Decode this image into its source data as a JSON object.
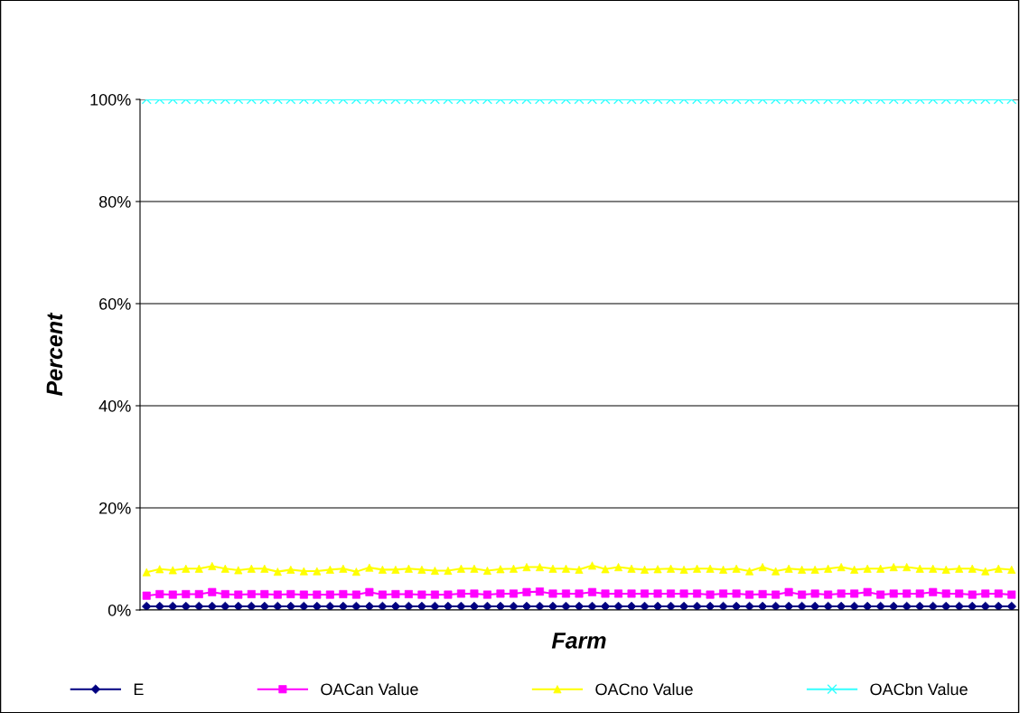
{
  "chart_data": {
    "type": "line",
    "xlabel": "Farm",
    "ylabel": "Percent",
    "categories": [
      null,
      null,
      null,
      null,
      null,
      null,
      null,
      null,
      null,
      null,
      null,
      null,
      null,
      null,
      null,
      null,
      null,
      null,
      null,
      null,
      null,
      null,
      null,
      null,
      null,
      null,
      null,
      null,
      null,
      null,
      null,
      null,
      null,
      null,
      null,
      null,
      null,
      null,
      null,
      null,
      null,
      null,
      null,
      null,
      null,
      null,
      null,
      null,
      null,
      null,
      null,
      null,
      null,
      null,
      null,
      null,
      null,
      null,
      null,
      null,
      null,
      null,
      null,
      null,
      null,
      null,
      null
    ],
    "ylim": [
      0,
      100
    ],
    "yticks": [
      {
        "value": 0,
        "label": "0%"
      },
      {
        "value": 20,
        "label": "20%"
      },
      {
        "value": 40,
        "label": "40%"
      },
      {
        "value": 60,
        "label": "60%"
      },
      {
        "value": 80,
        "label": "80%"
      },
      {
        "value": 100,
        "label": "100%"
      }
    ],
    "grid": "y",
    "legend": "bottom",
    "series": [
      {
        "name": "E",
        "color": "#000080",
        "marker": "diamond",
        "values": [
          0.7,
          0.7,
          0.7,
          0.7,
          0.7,
          0.7,
          0.7,
          0.7,
          0.7,
          0.7,
          0.7,
          0.7,
          0.7,
          0.7,
          0.7,
          0.7,
          0.7,
          0.7,
          0.7,
          0.7,
          0.7,
          0.7,
          0.7,
          0.7,
          0.7,
          0.7,
          0.7,
          0.7,
          0.7,
          0.7,
          0.7,
          0.7,
          0.7,
          0.7,
          0.7,
          0.7,
          0.7,
          0.7,
          0.7,
          0.7,
          0.7,
          0.7,
          0.7,
          0.7,
          0.7,
          0.7,
          0.7,
          0.7,
          0.7,
          0.7,
          0.7,
          0.7,
          0.7,
          0.7,
          0.7,
          0.7,
          0.7,
          0.7,
          0.7,
          0.7,
          0.7,
          0.7,
          0.7,
          0.7,
          0.7,
          0.7,
          0.7
        ]
      },
      {
        "name": "OACan Value",
        "color": "#ff00ff",
        "marker": "square",
        "values": [
          2.8,
          3.1,
          3.0,
          3.1,
          3.1,
          3.5,
          3.1,
          3.0,
          3.1,
          3.1,
          3.0,
          3.1,
          3.0,
          3.0,
          3.0,
          3.1,
          3.0,
          3.5,
          3.0,
          3.1,
          3.1,
          3.0,
          3.0,
          3.0,
          3.2,
          3.2,
          3.0,
          3.2,
          3.2,
          3.5,
          3.6,
          3.2,
          3.2,
          3.2,
          3.5,
          3.2,
          3.2,
          3.2,
          3.2,
          3.2,
          3.2,
          3.2,
          3.2,
          3.0,
          3.2,
          3.2,
          3.0,
          3.1,
          3.0,
          3.5,
          3.0,
          3.2,
          3.0,
          3.2,
          3.2,
          3.5,
          3.0,
          3.2,
          3.2,
          3.2,
          3.5,
          3.2,
          3.2,
          3.0,
          3.2,
          3.2,
          3.0
        ]
      },
      {
        "name": "OACno Value",
        "color": "#ffff00",
        "marker": "triangle",
        "values": [
          7.4,
          8.0,
          7.8,
          8.1,
          8.1,
          8.6,
          8.1,
          7.8,
          8.1,
          8.1,
          7.5,
          7.9,
          7.6,
          7.6,
          7.9,
          8.1,
          7.5,
          8.3,
          7.9,
          7.9,
          8.1,
          7.9,
          7.7,
          7.7,
          8.1,
          8.1,
          7.7,
          8.0,
          8.1,
          8.4,
          8.4,
          8.1,
          8.1,
          7.9,
          8.7,
          8.0,
          8.4,
          8.1,
          7.9,
          8.0,
          8.1,
          7.9,
          8.1,
          8.1,
          7.9,
          8.1,
          7.6,
          8.4,
          7.6,
          8.1,
          7.9,
          7.9,
          8.1,
          8.4,
          7.9,
          8.1,
          8.1,
          8.4,
          8.4,
          8.1,
          8.1,
          7.9,
          8.1,
          8.1,
          7.6,
          8.1,
          7.9
        ]
      },
      {
        "name": "OACbn Value",
        "color": "#33ffff",
        "marker": "cross",
        "values": [
          100,
          100,
          100,
          100,
          100,
          100,
          100,
          100,
          100,
          100,
          100,
          100,
          100,
          100,
          100,
          100,
          100,
          100,
          100,
          100,
          100,
          100,
          100,
          100,
          100,
          100,
          100,
          100,
          100,
          100,
          100,
          100,
          100,
          100,
          100,
          100,
          100,
          100,
          100,
          100,
          100,
          100,
          100,
          100,
          100,
          100,
          100,
          100,
          100,
          100,
          100,
          100,
          100,
          100,
          100,
          100,
          100,
          100,
          100,
          100,
          100,
          100,
          100,
          100,
          100,
          100,
          100
        ]
      }
    ]
  }
}
